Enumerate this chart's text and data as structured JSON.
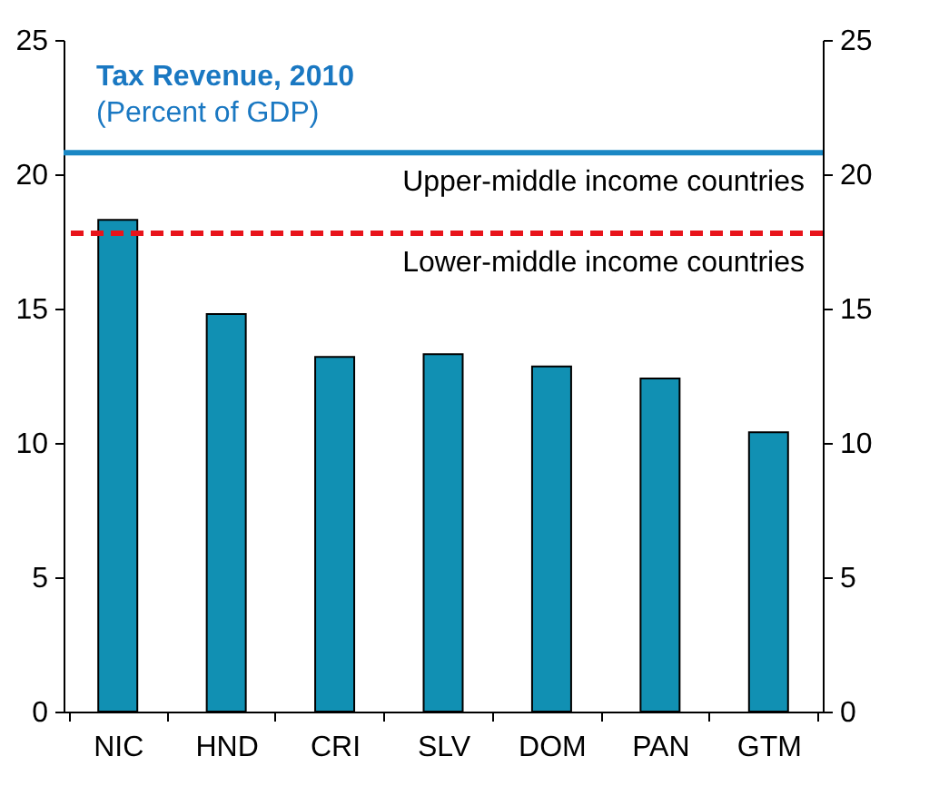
{
  "chart_data": {
    "type": "bar",
    "title": "Tax Revenue, 2010",
    "subtitle": "(Percent of GDP)",
    "categories": [
      "NIC",
      "HND",
      "CRI",
      "SLV",
      "DOM",
      "PAN",
      "GTM"
    ],
    "values": [
      18.3,
      14.8,
      13.2,
      13.3,
      12.85,
      12.4,
      10.4
    ],
    "color": "#1190b3",
    "ylim": [
      0,
      25
    ],
    "yticks": [
      0,
      5,
      10,
      15,
      20,
      25
    ],
    "y2lim": [
      0,
      25
    ],
    "y2ticks": [
      0,
      5,
      10,
      15,
      20,
      25
    ],
    "ref_lines": [
      {
        "axis": "y",
        "value": 20.8,
        "label": "Upper-middle income countries",
        "color": "#1a87c4",
        "line_style": "solid"
      },
      {
        "axis": "y",
        "value": 17.8,
        "label": "Lower-middle income countries",
        "color": "#e8141b",
        "line_style": "dashed"
      }
    ],
    "grid": false
  }
}
